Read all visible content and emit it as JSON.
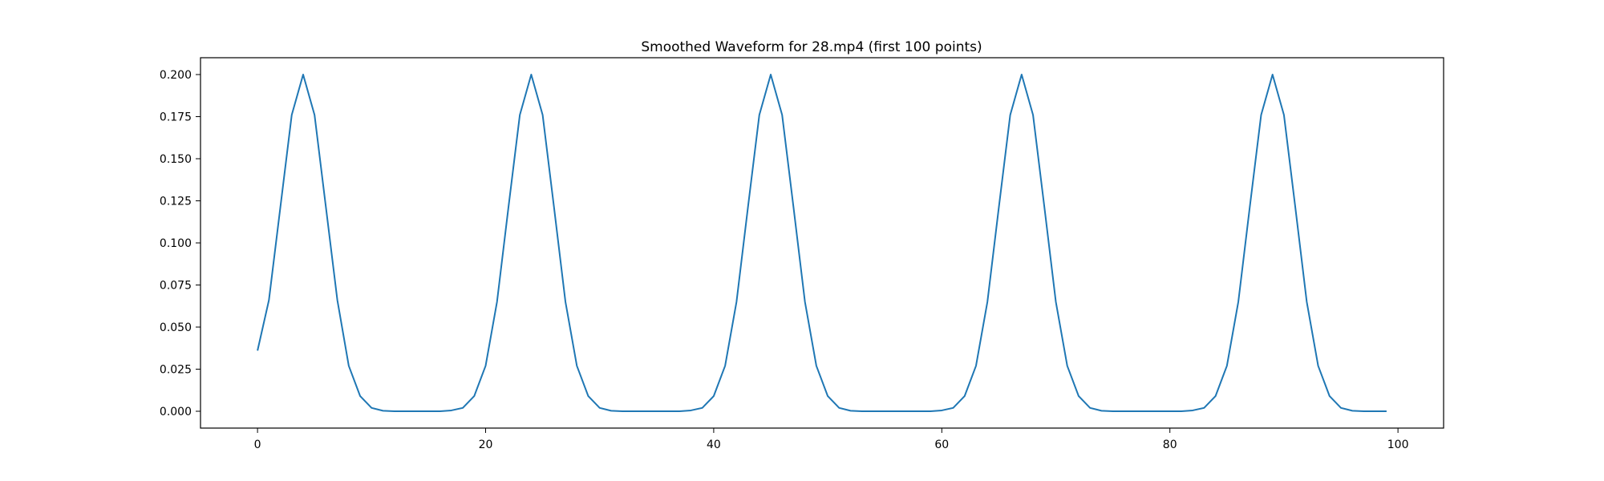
{
  "chart_data": {
    "type": "line",
    "title": "Smoothed Waveform for 28.mp4 (first 100 points)",
    "xlabel": "",
    "ylabel": "",
    "xlim": [
      -5,
      104
    ],
    "ylim": [
      -0.01,
      0.21
    ],
    "xticks": [
      0,
      20,
      40,
      60,
      80,
      100
    ],
    "xtick_labels": [
      "0",
      "20",
      "40",
      "60",
      "80",
      "100"
    ],
    "yticks": [
      0.0,
      0.025,
      0.05,
      0.075,
      0.1,
      0.125,
      0.15,
      0.175,
      0.2
    ],
    "ytick_labels": [
      "0.000",
      "0.025",
      "0.050",
      "0.075",
      "0.100",
      "0.125",
      "0.150",
      "0.175",
      "0.200"
    ],
    "grid": false,
    "colors": {
      "line": "#1f77b4",
      "axes": "#000000"
    },
    "series": [
      {
        "x": [
          0,
          1,
          2,
          3,
          4,
          5,
          6,
          7,
          8,
          9,
          10,
          11,
          12,
          13,
          14,
          15,
          16,
          17,
          18,
          19,
          20,
          21,
          22,
          23,
          24,
          25,
          26,
          27,
          28,
          29,
          30,
          31,
          32,
          33,
          34,
          35,
          36,
          37,
          38,
          39,
          40,
          41,
          42,
          43,
          44,
          45,
          46,
          47,
          48,
          49,
          50,
          51,
          52,
          53,
          54,
          55,
          56,
          57,
          58,
          59,
          60,
          61,
          62,
          63,
          64,
          65,
          66,
          67,
          68,
          69,
          70,
          71,
          72,
          73,
          74,
          75,
          76,
          77,
          78,
          79,
          80,
          81,
          82,
          83,
          84,
          85,
          86,
          87,
          88,
          89,
          90,
          91,
          92,
          93,
          94,
          95,
          96,
          97,
          98,
          99
        ],
        "values": [
          0.036,
          0.066,
          0.121,
          0.176,
          0.2,
          0.176,
          0.121,
          0.066,
          0.027,
          0.009,
          0.002,
          0.0003,
          0.0,
          0.0,
          0.0,
          0.0,
          0.0,
          0.0005,
          0.002,
          0.009,
          0.027,
          0.065,
          0.121,
          0.176,
          0.2,
          0.176,
          0.121,
          0.065,
          0.027,
          0.009,
          0.002,
          0.0003,
          0.0,
          0.0,
          0.0,
          0.0,
          0.0,
          0.0,
          0.0005,
          0.002,
          0.009,
          0.027,
          0.065,
          0.121,
          0.176,
          0.2,
          0.176,
          0.121,
          0.065,
          0.027,
          0.009,
          0.002,
          0.0003,
          0.0,
          0.0,
          0.0,
          0.0,
          0.0,
          0.0,
          0.0,
          0.0005,
          0.002,
          0.009,
          0.027,
          0.065,
          0.121,
          0.176,
          0.2,
          0.176,
          0.121,
          0.065,
          0.027,
          0.009,
          0.002,
          0.0003,
          0.0,
          0.0,
          0.0,
          0.0,
          0.0,
          0.0,
          0.0,
          0.0005,
          0.002,
          0.009,
          0.027,
          0.065,
          0.121,
          0.176,
          0.2,
          0.176,
          0.121,
          0.065,
          0.027,
          0.009,
          0.002,
          0.0003,
          0.0,
          0.0,
          0.0
        ]
      }
    ]
  }
}
